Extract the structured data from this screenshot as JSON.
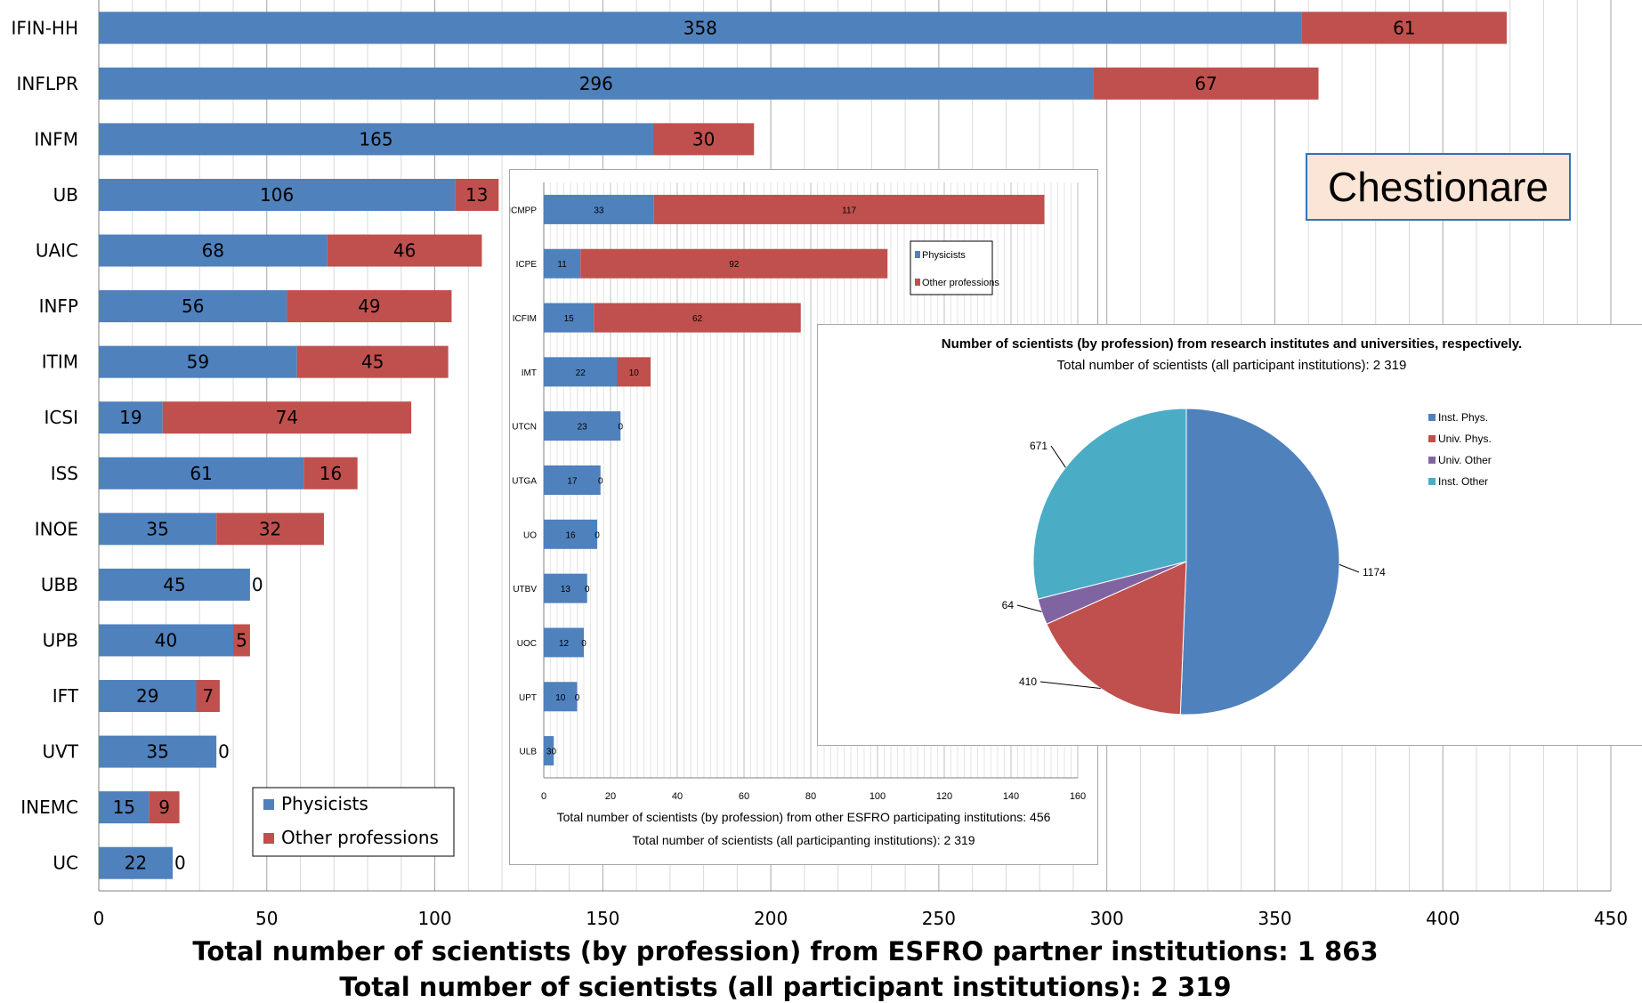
{
  "chart_data": [
    {
      "type": "bar",
      "orientation": "horizontal",
      "stacked": true,
      "categories": [
        "IFIN-HH",
        "INFLPR",
        "INFM",
        "UB",
        "UAIC",
        "INFP",
        "ITIM",
        "ICSI",
        "ISS",
        "INOE",
        "UBB",
        "UPB",
        "IFT",
        "UVT",
        "INEMC",
        "UC"
      ],
      "series": [
        {
          "name": "Physicists",
          "color": "#4f81bd",
          "values": [
            358,
            296,
            165,
            106,
            68,
            56,
            59,
            19,
            61,
            35,
            45,
            40,
            29,
            35,
            15,
            22
          ]
        },
        {
          "name": "Other professions",
          "color": "#c0504d",
          "values": [
            61,
            67,
            30,
            13,
            46,
            49,
            45,
            74,
            16,
            32,
            0,
            5,
            7,
            0,
            9,
            0
          ]
        }
      ],
      "xlim": [
        0,
        450
      ],
      "xticks": [
        0,
        50,
        100,
        150,
        200,
        250,
        300,
        350,
        400,
        450
      ],
      "grid": true,
      "legend_position": "bottom-left",
      "caption_lines": [
        "Total number of scientists (by profession) from ESFRO partner institutions: 1 863",
        "Total number of scientists (all participant institutions): 2 319"
      ]
    },
    {
      "type": "bar",
      "orientation": "horizontal",
      "stacked": true,
      "categories": [
        "ICMPP",
        "ICPE",
        "ICFIM",
        "IMT",
        "UTCN",
        "UTGA",
        "UO",
        "UTBV",
        "UOC",
        "UPT",
        "ULB"
      ],
      "series": [
        {
          "name": "Physicists",
          "color": "#4f81bd",
          "values": [
            33,
            11,
            15,
            22,
            23,
            17,
            16,
            13,
            12,
            10,
            3
          ]
        },
        {
          "name": "Other professions",
          "color": "#c0504d",
          "values": [
            117,
            92,
            62,
            10,
            0,
            0,
            0,
            0,
            0,
            0,
            0
          ]
        }
      ],
      "xlim": [
        0,
        160
      ],
      "xticks": [
        0,
        20,
        40,
        60,
        80,
        100,
        120,
        140,
        160
      ],
      "grid": true,
      "legend_position": "top-right",
      "caption_lines": [
        "Total number of scientists (by profession) from other ESFRO participating institutions: 456",
        "Total number of scientists (all participanting institutions): 2 319"
      ]
    },
    {
      "type": "pie",
      "title": "Number of scientists (by profession) from  research institutes and universities, respectively.",
      "subtitle": "Total number of scientists (all participant institutions): 2 319",
      "slices": [
        {
          "name": "Inst. Phys.",
          "value": 1174,
          "color": "#4f81bd"
        },
        {
          "name": "Univ. Phys.",
          "value": 410,
          "color": "#c0504d"
        },
        {
          "name": "Univ. Other",
          "value": 64,
          "color": "#8064a2"
        },
        {
          "name": "Inst. Other",
          "value": 671,
          "color": "#4bacc6"
        }
      ],
      "legend_position": "right"
    }
  ],
  "callout": {
    "label": "Chestionare"
  }
}
